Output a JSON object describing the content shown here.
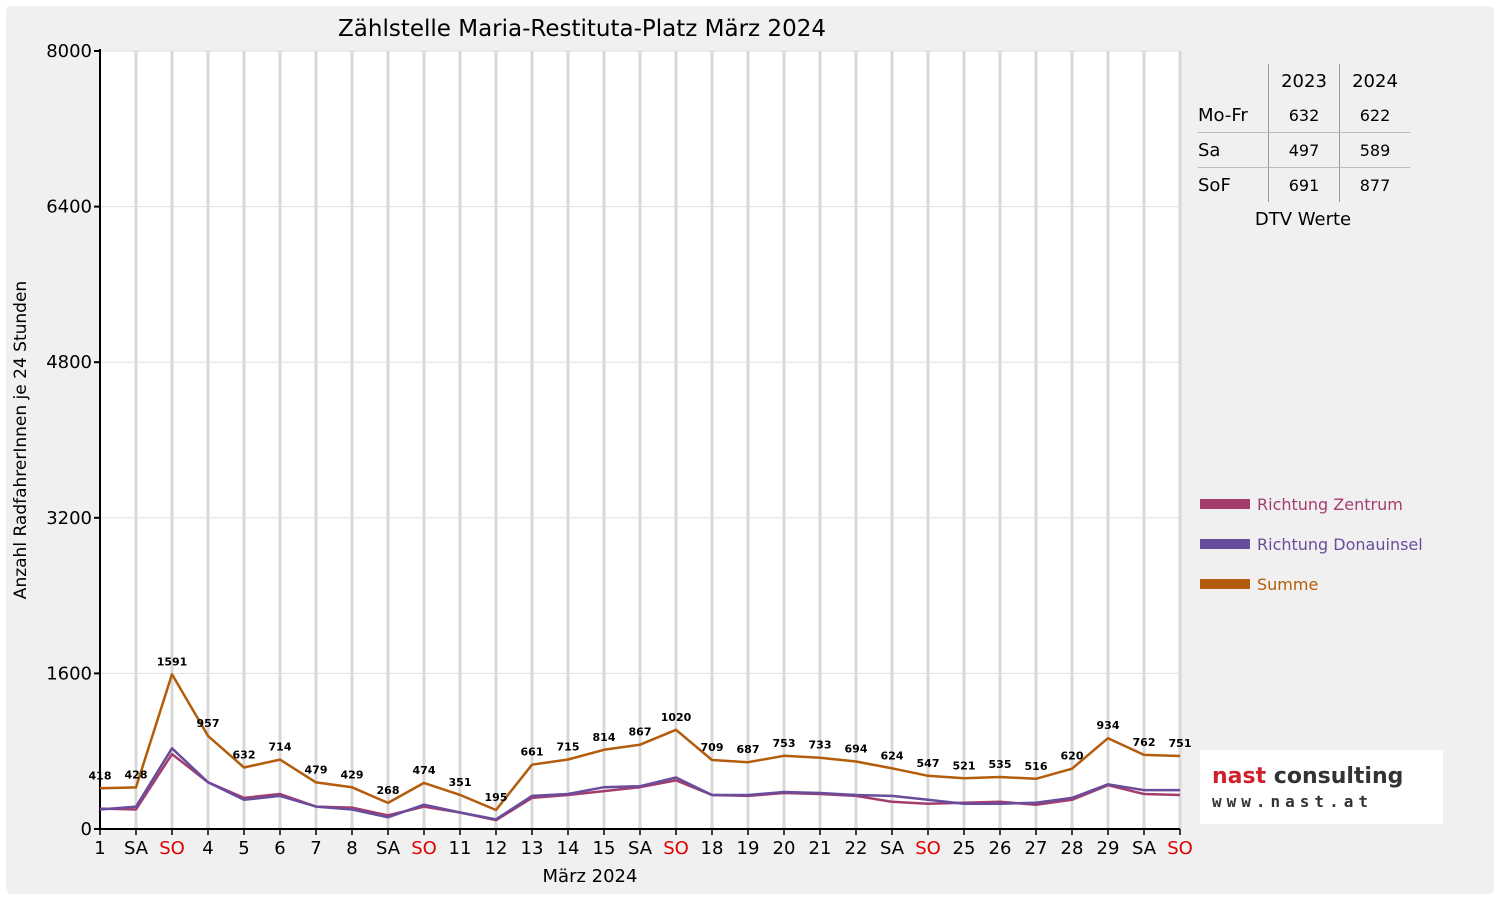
{
  "chart_data": {
    "type": "line",
    "title": "Zählstelle Maria-Restituta-Platz März 2024",
    "xlabel": "März 2024",
    "ylabel": "Anzahl RadfahrerInnen je 24 Stunden",
    "ylim": [
      0,
      8000
    ],
    "yticks": [
      "0",
      "1600",
      "3200",
      "4800",
      "6400",
      "8000"
    ],
    "grid": true,
    "legend_position": "right",
    "categories": [
      "1",
      "SA",
      "SO",
      "4",
      "5",
      "6",
      "7",
      "8",
      "SA",
      "SO",
      "11",
      "12",
      "13",
      "14",
      "15",
      "SA",
      "SO",
      "18",
      "19",
      "20",
      "21",
      "22",
      "SA",
      "SO",
      "25",
      "26",
      "27",
      "28",
      "29",
      "SA",
      "SO"
    ],
    "weekend_days": [
      "SO"
    ],
    "series": [
      {
        "name": "Richtung Zentrum",
        "color": "#a33d6e",
        "values": [
          210,
          200,
          770,
          480,
          320,
          360,
          230,
          220,
          140,
          230,
          170,
          90,
          320,
          350,
          390,
          430,
          500,
          350,
          340,
          370,
          360,
          340,
          280,
          260,
          270,
          280,
          250,
          300,
          450,
          360,
          350
        ]
      },
      {
        "name": "Richtung Donauinsel",
        "color": "#6a4c9c",
        "values": [
          200,
          230,
          830,
          480,
          300,
          340,
          230,
          200,
          120,
          250,
          170,
          100,
          340,
          360,
          430,
          440,
          530,
          350,
          350,
          380,
          370,
          350,
          340,
          300,
          260,
          260,
          270,
          320,
          460,
          400,
          400
        ]
      },
      {
        "name": "Summe",
        "color": "#b35c0a",
        "values": [
          418,
          428,
          1591,
          957,
          632,
          714,
          479,
          429,
          268,
          474,
          351,
          195,
          661,
          715,
          814,
          867,
          1020,
          709,
          687,
          753,
          733,
          694,
          624,
          547,
          521,
          535,
          516,
          620,
          934,
          762,
          751
        ]
      }
    ],
    "data_labels": [
      "418",
      "428",
      "1591",
      "957",
      "632",
      "714",
      "479",
      "429",
      "268",
      "474",
      "351",
      "195",
      "661",
      "715",
      "814",
      "867",
      "1020",
      "709",
      "687",
      "753",
      "733",
      "694",
      "624",
      "547",
      "521",
      "535",
      "516",
      "620",
      "934",
      "762",
      "751"
    ]
  },
  "dtv_table": {
    "years": [
      "2023",
      "2024"
    ],
    "rows": [
      {
        "label": "Mo-Fr",
        "v2023": "632",
        "v2024": "622"
      },
      {
        "label": "Sa",
        "v2023": "497",
        "v2024": "589"
      },
      {
        "label": "SoF",
        "v2023": "691",
        "v2024": "877"
      }
    ],
    "caption": "DTV Werte"
  },
  "logo": {
    "line1": "nast consulting",
    "line2": "www.nast.at",
    "red_color": "#d0202e"
  }
}
